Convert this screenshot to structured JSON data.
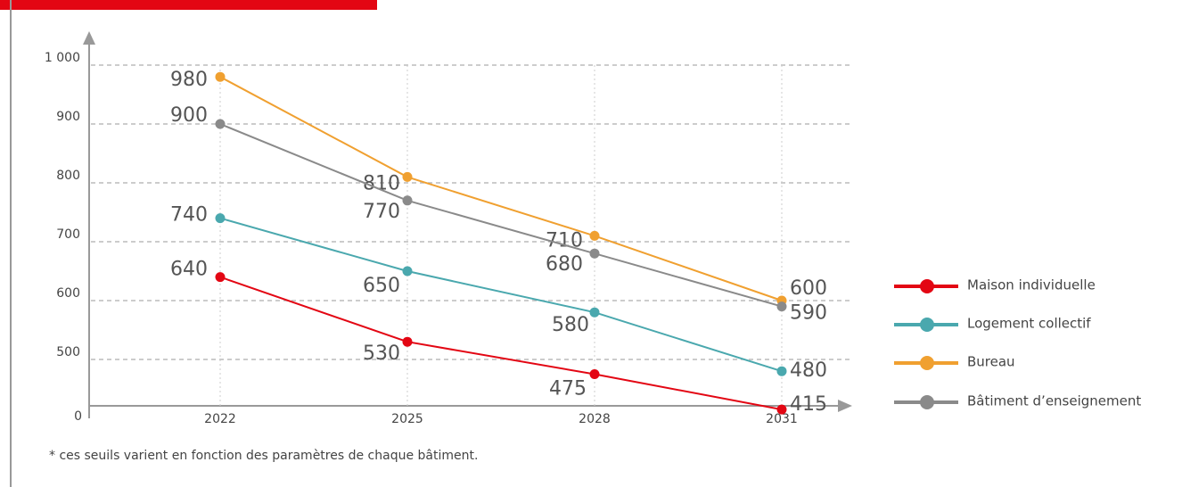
{
  "chart_data": {
    "type": "line",
    "categories": [
      "2022",
      "2025",
      "2028",
      "2031"
    ],
    "series": [
      {
        "name": "Maison individuelle",
        "color": "#e30613",
        "values": [
          640,
          530,
          475,
          415
        ]
      },
      {
        "name": "Logement collectif",
        "color": "#4aa8ae",
        "values": [
          740,
          650,
          580,
          480
        ]
      },
      {
        "name": "Bureau",
        "color": "#f0a030",
        "values": [
          980,
          810,
          710,
          600
        ]
      },
      {
        "name": "Bâtiment d’enseignement",
        "color": "#8a8a8a",
        "values": [
          900,
          770,
          680,
          590
        ]
      }
    ],
    "ylim": [
      400,
      1000
    ],
    "yticks": [
      0,
      500,
      600,
      700,
      800,
      900,
      {
        "value": 1000,
        "label": "1 000"
      }
    ],
    "grid": true,
    "legend": "right",
    "annotations": [
      "* ces seuils varient en fonction des paramètres de chaque bâtiment."
    ]
  }
}
